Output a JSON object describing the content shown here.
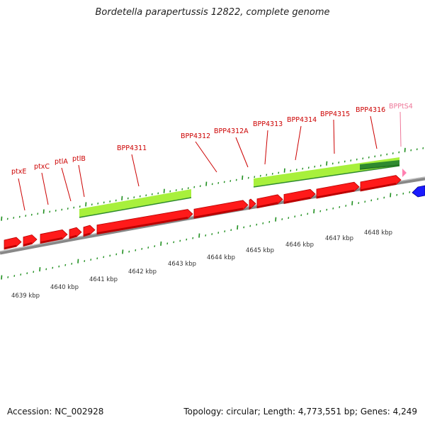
{
  "title": "Bordetella parapertussis 12822, complete genome",
  "footer": {
    "accession": "Accession: NC_002928",
    "summary": "Topology: circular; Length: 4,773,551 bp; Genes: 4,249"
  },
  "colors": {
    "gene": "#ff1a1a",
    "gene_dark": "#b80000",
    "cds_band": "#a8f03c",
    "cds_band_dark": "#2f8a2f",
    "trna": "#ff80b0",
    "other_gene": "#1a1aff",
    "tick": "#1f8f1f",
    "backbone": "#888888",
    "label": "#cc0000",
    "label_trna": "#ee7799"
  },
  "axis": {
    "unit": "kbp",
    "labels": [
      "4639 kbp",
      "4640 kbp",
      "4641 kbp",
      "4642 kbp",
      "4643 kbp",
      "4644 kbp",
      "4645 kbp",
      "4646 kbp",
      "4647 kbp",
      "4648 kbp"
    ]
  },
  "gene_labels": [
    "ptxE",
    "ptxC",
    "ptlA",
    "ptlB",
    "BPP4311",
    "BPP4312",
    "BPP4312A",
    "BPP4313",
    "BPP4314",
    "BPP4315",
    "BPP4316",
    "BPPtS4"
  ]
}
